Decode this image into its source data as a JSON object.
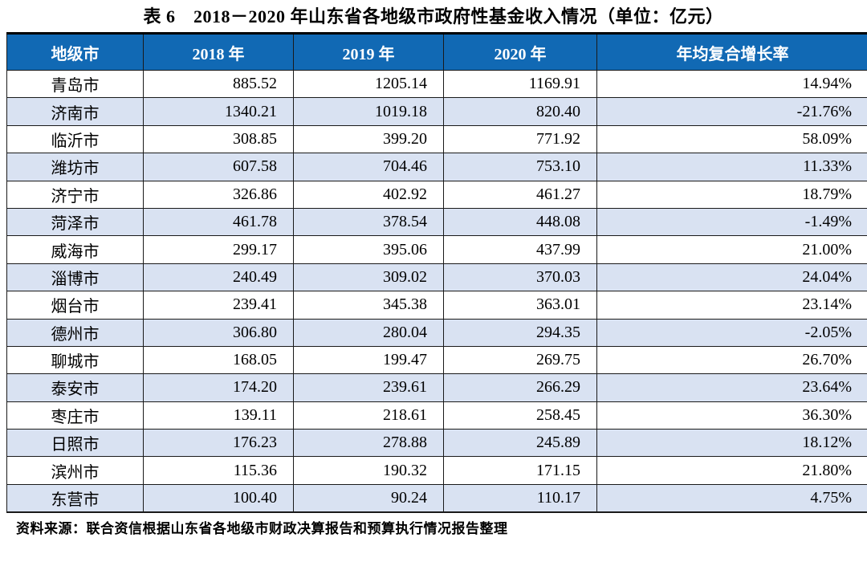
{
  "title": "表 6　2018－2020 年山东省各地级市政府性基金收入情况（单位：亿元）",
  "source_note": "资料来源：联合资信根据山东省各地级市财政决算报告和预算执行情况报告整理",
  "colors": {
    "header_background": "#1169B4",
    "header_text": "#FFFFFF",
    "stripe_row_background": "#D9E2F2",
    "border": "#1A1A1A"
  },
  "table": {
    "headers": [
      "地级市",
      "2018 年",
      "2019 年",
      "2020 年",
      "年均复合增长率"
    ],
    "rows": [
      {
        "city": "青岛市",
        "y2018": "885.52",
        "y2019": "1205.14",
        "y2020": "1169.91",
        "cagr": "14.94%"
      },
      {
        "city": "济南市",
        "y2018": "1340.21",
        "y2019": "1019.18",
        "y2020": "820.40",
        "cagr": "-21.76%"
      },
      {
        "city": "临沂市",
        "y2018": "308.85",
        "y2019": "399.20",
        "y2020": "771.92",
        "cagr": "58.09%"
      },
      {
        "city": "潍坊市",
        "y2018": "607.58",
        "y2019": "704.46",
        "y2020": "753.10",
        "cagr": "11.33%"
      },
      {
        "city": "济宁市",
        "y2018": "326.86",
        "y2019": "402.92",
        "y2020": "461.27",
        "cagr": "18.79%"
      },
      {
        "city": "菏泽市",
        "y2018": "461.78",
        "y2019": "378.54",
        "y2020": "448.08",
        "cagr": "-1.49%"
      },
      {
        "city": "威海市",
        "y2018": "299.17",
        "y2019": "395.06",
        "y2020": "437.99",
        "cagr": "21.00%"
      },
      {
        "city": "淄博市",
        "y2018": "240.49",
        "y2019": "309.02",
        "y2020": "370.03",
        "cagr": "24.04%"
      },
      {
        "city": "烟台市",
        "y2018": "239.41",
        "y2019": "345.38",
        "y2020": "363.01",
        "cagr": "23.14%"
      },
      {
        "city": "德州市",
        "y2018": "306.80",
        "y2019": "280.04",
        "y2020": "294.35",
        "cagr": "-2.05%"
      },
      {
        "city": "聊城市",
        "y2018": "168.05",
        "y2019": "199.47",
        "y2020": "269.75",
        "cagr": "26.70%"
      },
      {
        "city": "泰安市",
        "y2018": "174.20",
        "y2019": "239.61",
        "y2020": "266.29",
        "cagr": "23.64%"
      },
      {
        "city": "枣庄市",
        "y2018": "139.11",
        "y2019": "218.61",
        "y2020": "258.45",
        "cagr": "36.30%"
      },
      {
        "city": "日照市",
        "y2018": "176.23",
        "y2019": "278.88",
        "y2020": "245.89",
        "cagr": "18.12%"
      },
      {
        "city": "滨州市",
        "y2018": "115.36",
        "y2019": "190.32",
        "y2020": "171.15",
        "cagr": "21.80%"
      },
      {
        "city": "东营市",
        "y2018": "100.40",
        "y2019": "90.24",
        "y2020": "110.17",
        "cagr": "4.75%"
      }
    ]
  }
}
